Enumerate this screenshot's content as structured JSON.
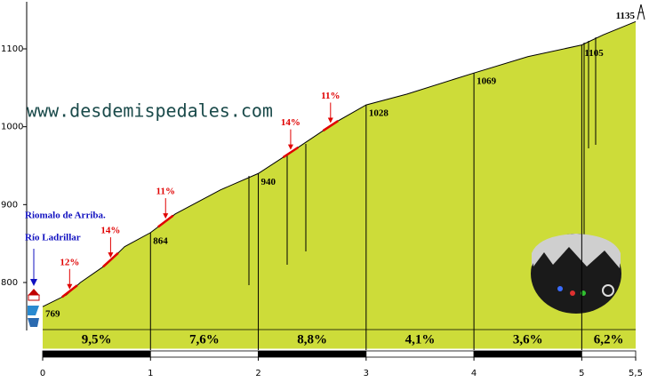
{
  "chart_data": {
    "type": "area",
    "website": "www.desdemispedales.com",
    "places": [
      "Riomalo de Arriba.",
      "Río Ladrillar"
    ],
    "color": "#cddc39",
    "x": [
      0,
      0.22,
      0.35,
      0.59,
      0.76,
      1.0,
      1.23,
      1.65,
      2.0,
      2.3,
      2.44,
      2.72,
      3.0,
      3.38,
      4.0,
      4.5,
      5.0,
      5.2,
      5.5
    ],
    "values": [
      769,
      784,
      800,
      823,
      846,
      864,
      888,
      919,
      940,
      967,
      980,
      1006,
      1028,
      1042,
      1069,
      1090,
      1105,
      1118,
      1135
    ],
    "spot_heights": {
      "x": [
        0,
        1,
        2,
        3,
        4,
        5,
        5.5
      ],
      "values": [
        769,
        864,
        940,
        1028,
        1069,
        1105,
        1135
      ]
    },
    "segments": {
      "edges": [
        0,
        1,
        2,
        3,
        4,
        5,
        5.5
      ],
      "values": [
        9.5,
        7.6,
        8.8,
        4.1,
        3.6,
        6.2
      ],
      "value_labels": [
        "9,5%",
        "7,6%",
        "8,8%",
        "4,1%",
        "3,6%",
        "6,2%"
      ]
    },
    "steep_sections": {
      "x": [
        0.25,
        0.63,
        1.14,
        2.3,
        2.67
      ],
      "values": [
        12,
        14,
        11,
        14,
        11
      ],
      "value_labels": [
        "12%",
        "14%",
        "11%",
        "14%",
        "11%"
      ]
    },
    "xlim": [
      0,
      5.5
    ],
    "xticks": [
      0,
      1,
      2,
      3,
      4,
      5,
      {
        "value": 5.5,
        "label": "5,5"
      }
    ],
    "ylim": [
      715,
      1160
    ],
    "yticks": [
      800,
      900,
      1000,
      1100
    ]
  }
}
